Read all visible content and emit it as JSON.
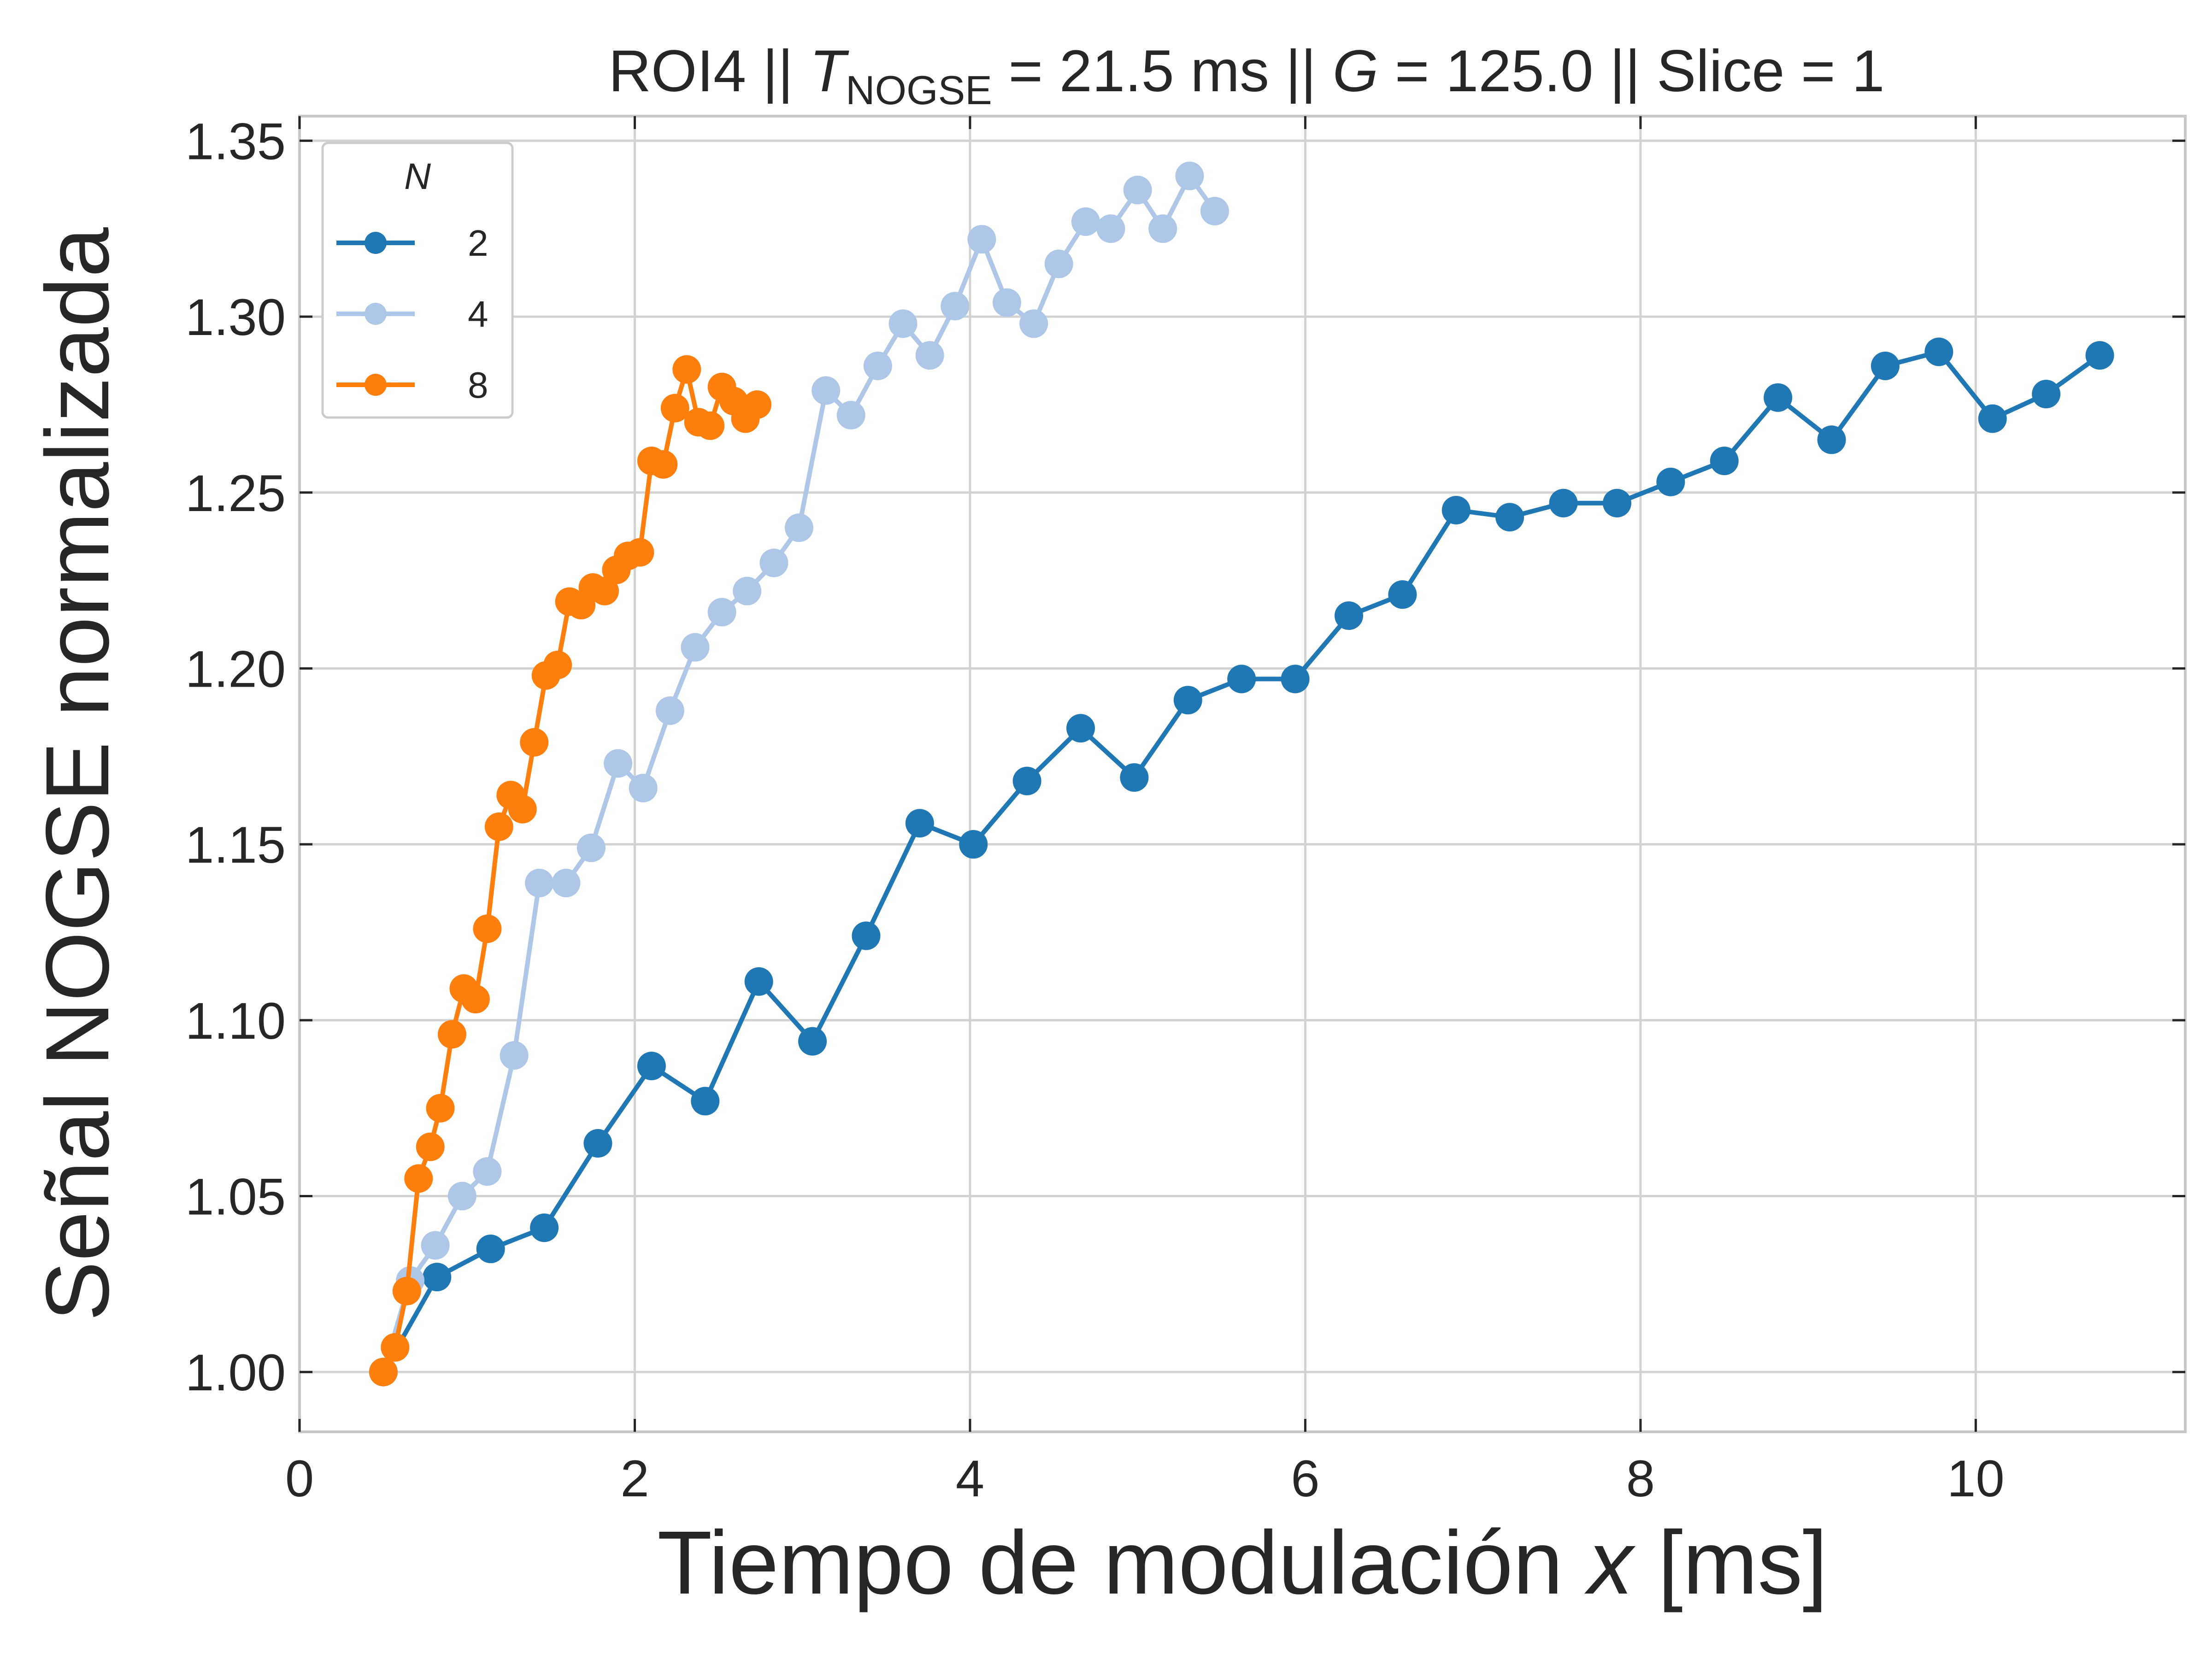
{
  "chart_data": {
    "type": "line",
    "title": {
      "prefix": "ROI4 || ",
      "t_symbol": "T",
      "t_subscript": "NOGSE",
      "middle": " = 21.5 ms  ||  ",
      "g_symbol": "G",
      "suffix": " = 125.0 || Slice = 1"
    },
    "xlabel": {
      "prefix": "Tiempo de modulación ",
      "var": "x",
      "suffix": " [ms]"
    },
    "ylabel": "Señal NOGSE normalizada",
    "xlim": [
      0,
      11.25
    ],
    "ylim": [
      0.983,
      1.357
    ],
    "xticks": [
      0,
      2,
      4,
      6,
      8,
      10
    ],
    "xtick_labels": [
      "0",
      "2",
      "4",
      "6",
      "8",
      "10"
    ],
    "yticks": [
      1.0,
      1.05,
      1.1,
      1.15,
      1.2,
      1.25,
      1.3,
      1.35
    ],
    "ytick_labels": [
      "1.00",
      "1.05",
      "1.10",
      "1.15",
      "1.20",
      "1.25",
      "1.30",
      "1.35"
    ],
    "grid": true,
    "legend": {
      "title": "N",
      "placement": "top-left"
    },
    "series": [
      {
        "name": "2",
        "color": "#1f77b4",
        "x": [
          0.5,
          0.82,
          1.14,
          1.46,
          1.78,
          2.1,
          2.42,
          2.74,
          3.06,
          3.38,
          3.7,
          4.02,
          4.34,
          4.66,
          4.98,
          5.3,
          5.62,
          5.94,
          6.26,
          6.58,
          6.9,
          7.22,
          7.54,
          7.86,
          8.18,
          8.5,
          8.82,
          9.14,
          9.46,
          9.78,
          10.1,
          10.42,
          10.74
        ],
        "y": [
          1.0,
          1.027,
          1.035,
          1.041,
          1.065,
          1.087,
          1.077,
          1.111,
          1.094,
          1.124,
          1.156,
          1.15,
          1.168,
          1.183,
          1.169,
          1.191,
          1.197,
          1.197,
          1.215,
          1.221,
          1.245,
          1.243,
          1.247,
          1.247,
          1.253,
          1.259,
          1.277,
          1.265,
          1.286,
          1.29,
          1.271,
          1.278,
          1.289
        ]
      },
      {
        "name": "4",
        "color": "#aec7e8",
        "x": [
          0.5,
          0.66,
          0.81,
          0.97,
          1.12,
          1.28,
          1.43,
          1.59,
          1.74,
          1.9,
          2.05,
          2.21,
          2.36,
          2.52,
          2.67,
          2.83,
          2.98,
          3.14,
          3.29,
          3.45,
          3.6,
          3.76,
          3.91,
          4.07,
          4.22,
          4.38,
          4.53,
          4.69,
          4.84,
          5.0,
          5.15,
          5.31,
          5.46
        ],
        "y": [
          1.0,
          1.026,
          1.036,
          1.05,
          1.057,
          1.09,
          1.139,
          1.139,
          1.149,
          1.173,
          1.166,
          1.188,
          1.206,
          1.216,
          1.222,
          1.23,
          1.24,
          1.279,
          1.272,
          1.286,
          1.298,
          1.289,
          1.303,
          1.322,
          1.304,
          1.298,
          1.315,
          1.327,
          1.325,
          1.336,
          1.325,
          1.34,
          1.33
        ]
      },
      {
        "name": "8",
        "color": "#ff7f0e",
        "x": [
          0.5,
          0.57,
          0.64,
          0.71,
          0.78,
          0.84,
          0.91,
          0.98,
          1.05,
          1.12,
          1.19,
          1.26,
          1.33,
          1.4,
          1.47,
          1.54,
          1.61,
          1.68,
          1.75,
          1.82,
          1.89,
          1.96,
          2.03,
          2.1,
          2.17,
          2.24,
          2.31,
          2.38,
          2.45,
          2.52,
          2.59,
          2.66,
          2.73
        ],
        "y": [
          1.0,
          1.007,
          1.023,
          1.055,
          1.064,
          1.075,
          1.096,
          1.109,
          1.106,
          1.126,
          1.155,
          1.164,
          1.16,
          1.179,
          1.198,
          1.201,
          1.219,
          1.218,
          1.223,
          1.222,
          1.228,
          1.232,
          1.233,
          1.259,
          1.258,
          1.274,
          1.285,
          1.27,
          1.269,
          1.28,
          1.276,
          1.271,
          1.275
        ]
      }
    ]
  }
}
